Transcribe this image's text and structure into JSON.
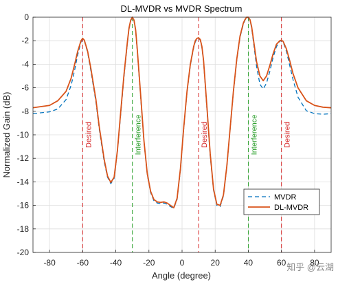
{
  "chart_data": {
    "type": "line",
    "title": "DL-MVDR vs MVDR Spectrum",
    "xlabel": "Angle (degree)",
    "ylabel": "Normalized Gain (dB)",
    "xlim": [
      -90,
      90
    ],
    "ylim": [
      -20,
      0
    ],
    "xticks": [
      -80,
      -60,
      -40,
      -20,
      0,
      20,
      40,
      60,
      80
    ],
    "yticks": [
      0,
      -2,
      -4,
      -6,
      -8,
      -10,
      -12,
      -14,
      -16,
      -18,
      -20
    ],
    "grid": true,
    "legend_position": "bottom-right",
    "series": [
      {
        "name": "MVDR",
        "style": "dashed",
        "color": "#0072BD",
        "x": [
          -90,
          -80,
          -75,
          -70,
          -67,
          -65,
          -63,
          -61,
          -60,
          -59,
          -57,
          -55,
          -52,
          -50,
          -47,
          -45,
          -43,
          -41,
          -39,
          -37,
          -35,
          -33,
          -32,
          -31,
          -30,
          -29,
          -28,
          -27,
          -25,
          -23,
          -21,
          -19,
          -17,
          -15,
          -13,
          -11,
          -9,
          -7,
          -5,
          -3,
          -1,
          1,
          3,
          5,
          7,
          8,
          9,
          10,
          11,
          12,
          13,
          15,
          17,
          19,
          21,
          23,
          25,
          27,
          29,
          31,
          33,
          35,
          37,
          38,
          39,
          40,
          41,
          42,
          43,
          45,
          47,
          49,
          51,
          53,
          55,
          57,
          59,
          60,
          61,
          63,
          65,
          67,
          70,
          75,
          80,
          85,
          90
        ],
        "y": [
          -8.2,
          -8.05,
          -7.8,
          -7.0,
          -5.8,
          -4.6,
          -3.2,
          -2.1,
          -1.85,
          -2.0,
          -3.0,
          -4.6,
          -7.2,
          -9.5,
          -12.3,
          -13.6,
          -14.15,
          -13.7,
          -11.4,
          -8.2,
          -5.0,
          -2.2,
          -1.0,
          -0.3,
          -0.05,
          -0.3,
          -1.2,
          -2.9,
          -6.8,
          -10.6,
          -13.4,
          -14.9,
          -15.6,
          -15.8,
          -15.85,
          -15.8,
          -15.9,
          -16.1,
          -16.25,
          -15.5,
          -13.0,
          -9.5,
          -6.4,
          -4.1,
          -2.6,
          -2.1,
          -1.85,
          -1.8,
          -1.95,
          -2.6,
          -3.8,
          -7.8,
          -11.8,
          -14.7,
          -16.0,
          -16.1,
          -15.2,
          -12.8,
          -9.6,
          -6.4,
          -3.7,
          -1.7,
          -0.6,
          -0.25,
          -0.05,
          -0.05,
          -0.25,
          -0.9,
          -2.0,
          -4.2,
          -5.7,
          -6.1,
          -5.6,
          -4.6,
          -3.4,
          -2.5,
          -2.05,
          -2.0,
          -2.1,
          -2.9,
          -4.1,
          -5.3,
          -6.8,
          -7.95,
          -8.2,
          -8.25,
          -8.2
        ]
      },
      {
        "name": "DL-MVDR",
        "style": "solid",
        "color": "#D95319",
        "x": [
          -90,
          -80,
          -75,
          -70,
          -67,
          -65,
          -63,
          -61,
          -60,
          -59,
          -57,
          -55,
          -52,
          -50,
          -47,
          -45,
          -43,
          -41,
          -39,
          -37,
          -35,
          -33,
          -32,
          -31,
          -30,
          -29,
          -28,
          -27,
          -25,
          -23,
          -21,
          -19,
          -17,
          -15,
          -13,
          -11,
          -9,
          -7,
          -5,
          -3,
          -1,
          1,
          3,
          5,
          7,
          8,
          9,
          10,
          11,
          12,
          13,
          15,
          17,
          19,
          21,
          23,
          25,
          27,
          29,
          31,
          33,
          35,
          37,
          38,
          39,
          40,
          41,
          42,
          43,
          45,
          47,
          49,
          51,
          53,
          55,
          57,
          59,
          60,
          61,
          63,
          65,
          67,
          70,
          75,
          80,
          85,
          90
        ],
        "y": [
          -7.7,
          -7.5,
          -7.1,
          -6.3,
          -5.2,
          -4.1,
          -2.9,
          -2.0,
          -1.8,
          -1.95,
          -2.9,
          -4.4,
          -7.0,
          -9.3,
          -12.1,
          -13.5,
          -14.05,
          -13.6,
          -11.3,
          -8.0,
          -4.8,
          -2.1,
          -0.9,
          -0.25,
          0.0,
          -0.25,
          -1.1,
          -2.8,
          -6.6,
          -10.5,
          -13.3,
          -14.8,
          -15.5,
          -15.7,
          -15.75,
          -15.7,
          -15.8,
          -16.0,
          -16.2,
          -15.4,
          -12.9,
          -9.4,
          -6.3,
          -4.0,
          -2.5,
          -2.0,
          -1.8,
          -1.75,
          -1.9,
          -2.5,
          -3.7,
          -7.6,
          -11.6,
          -14.6,
          -15.9,
          -16.0,
          -15.1,
          -12.7,
          -9.5,
          -6.3,
          -3.6,
          -1.6,
          -0.5,
          -0.2,
          0.0,
          0.0,
          -0.2,
          -0.8,
          -1.8,
          -3.8,
          -5.0,
          -5.4,
          -5.0,
          -4.1,
          -3.1,
          -2.3,
          -2.0,
          -1.95,
          -2.05,
          -2.7,
          -3.7,
          -4.8,
          -6.0,
          -7.1,
          -7.5,
          -7.65,
          -7.7
        ]
      }
    ],
    "annotations": [
      {
        "x": -60,
        "label": "Desired",
        "color": "#d62728"
      },
      {
        "x": -30,
        "label": "Interference",
        "color": "#2ca02c"
      },
      {
        "x": 10,
        "label": "Desired",
        "color": "#d62728"
      },
      {
        "x": 40,
        "label": "Interference",
        "color": "#2ca02c"
      },
      {
        "x": 60,
        "label": "Desired",
        "color": "#d62728"
      }
    ],
    "legend_order": [
      0,
      1
    ]
  },
  "watermark": "知乎 @云湖"
}
